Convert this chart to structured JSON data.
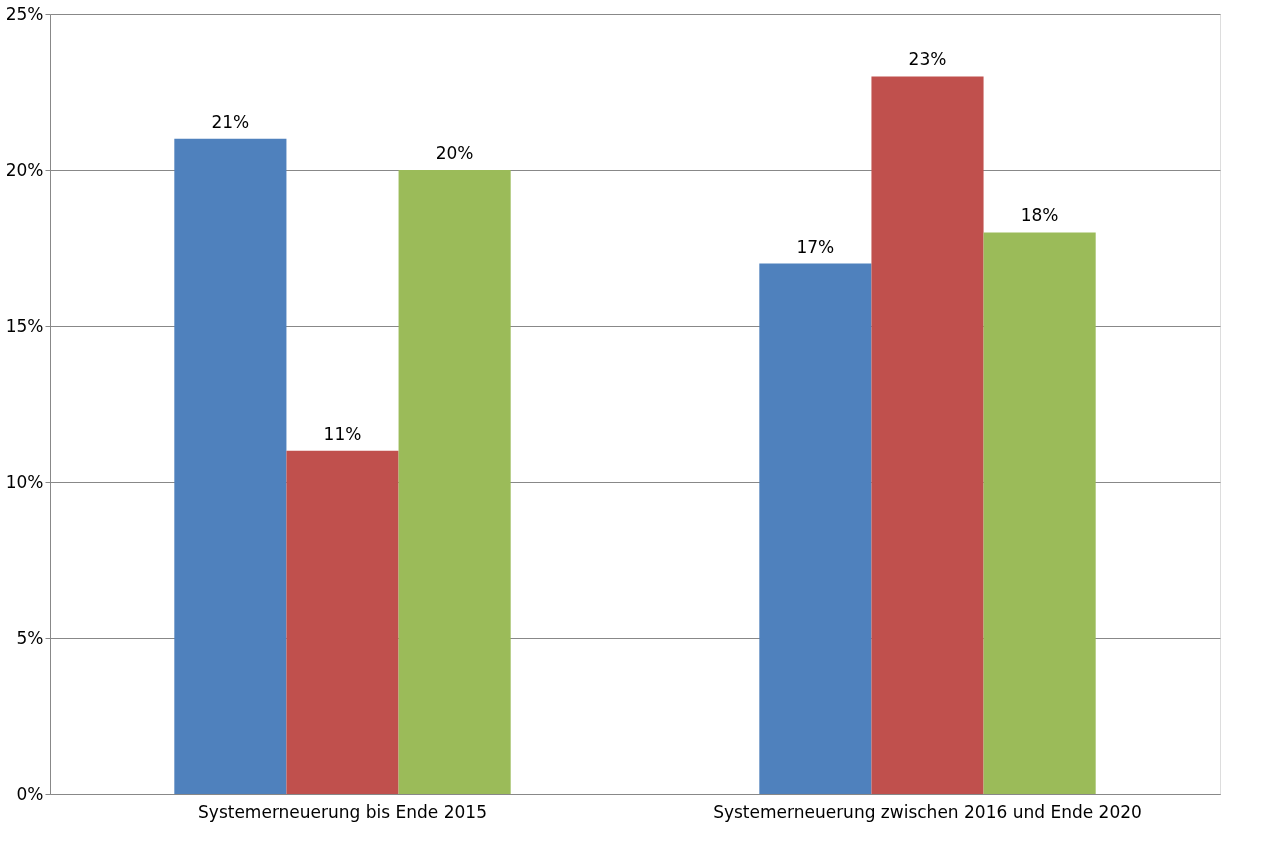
{
  "chart_data": {
    "type": "bar",
    "categories": [
      "Systemerneuerung bis Ende 2015",
      "Systemerneuerung zwischen 2016 und Ende 2020"
    ],
    "series": [
      {
        "color": "#4f81bd",
        "values": [
          21,
          17
        ],
        "value_labels": [
          "21%",
          "17%"
        ]
      },
      {
        "color": "#c0504d",
        "values": [
          11,
          23
        ],
        "value_labels": [
          "11%",
          "23%"
        ]
      },
      {
        "color": "#9bbb59",
        "values": [
          20,
          18
        ],
        "value_labels": [
          "20%",
          "18%"
        ]
      }
    ],
    "ylim": [
      0,
      25
    ],
    "yticks": [
      {
        "value": 0,
        "label": "0%"
      },
      {
        "value": 5,
        "label": "5%"
      },
      {
        "value": 10,
        "label": "10%"
      },
      {
        "value": 15,
        "label": "15%"
      },
      {
        "value": 20,
        "label": "20%"
      },
      {
        "value": 25,
        "label": "25%"
      }
    ],
    "grid": "y",
    "legend": false
  }
}
